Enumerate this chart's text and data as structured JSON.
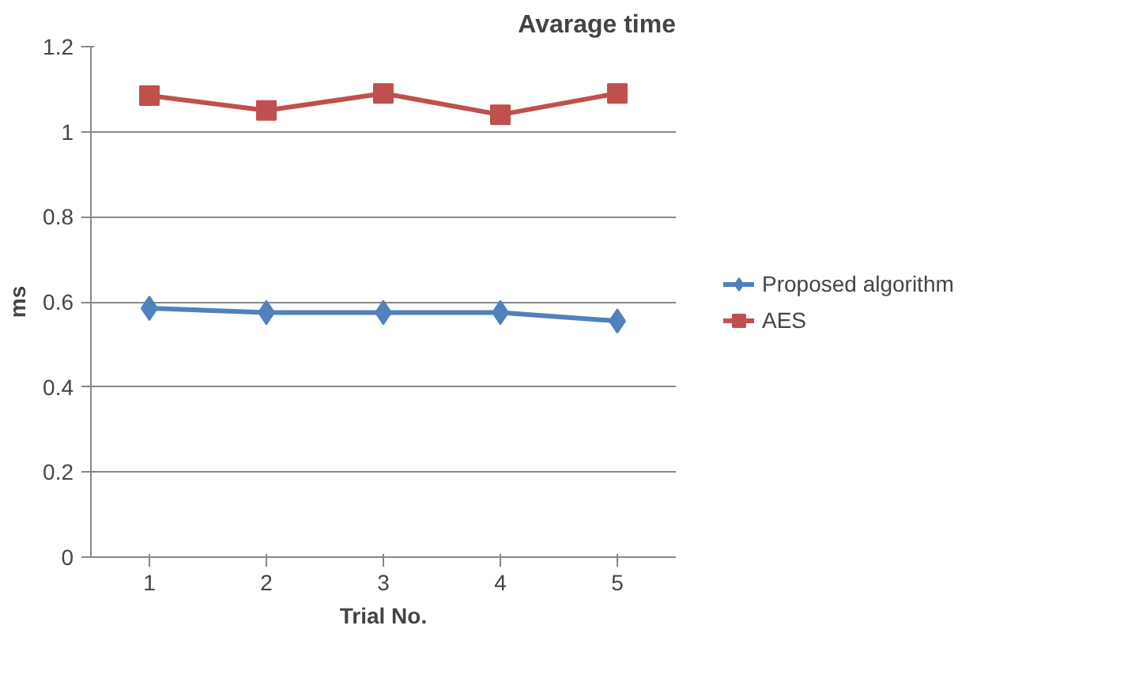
{
  "chart_data": {
    "type": "line",
    "title": "Avarage time",
    "xlabel": "Trial No.",
    "ylabel": "ms",
    "categories": [
      "1",
      "2",
      "3",
      "4",
      "5"
    ],
    "series": [
      {
        "name": "Proposed algorithm",
        "color": "#4f81bd",
        "values": [
          0.585,
          0.575,
          0.575,
          0.575,
          0.555
        ],
        "marker": "diamond"
      },
      {
        "name": "AES",
        "color": "#c0504d",
        "values": [
          1.085,
          1.05,
          1.09,
          1.04,
          1.09
        ],
        "marker": "square"
      }
    ],
    "ylim": [
      0,
      1.2
    ],
    "yticks": [
      0,
      0.2,
      0.4,
      0.6,
      0.8,
      1,
      1.2
    ],
    "grid": "y",
    "legend": "right"
  }
}
